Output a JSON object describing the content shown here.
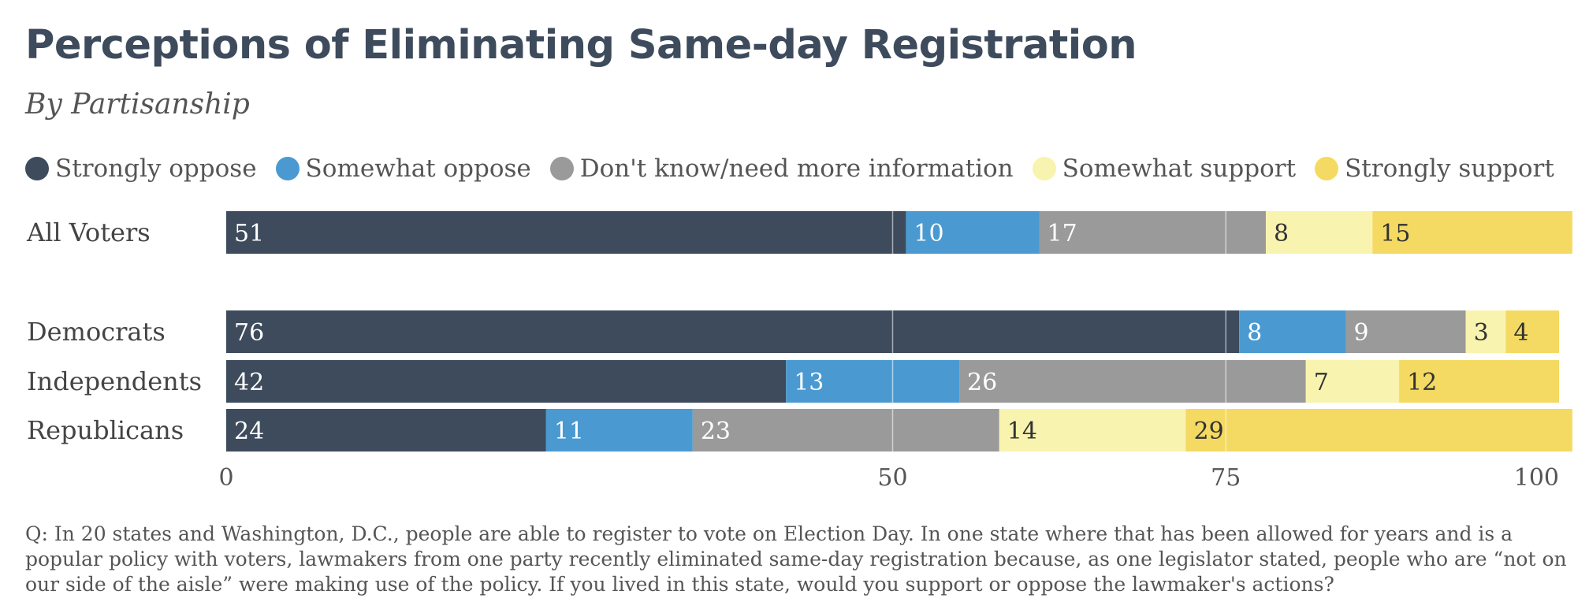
{
  "title": "Perceptions of Eliminating Same-day Registration",
  "subtitle": "By Partisanship",
  "question": "Q: In 20 states and Washington, D.C., people are able to register to vote on Election Day. In one state where that has been allowed for years and is a popular policy with voters, lawmakers from one party recently eliminated same-day registration because, as one legislator stated, people who are “not on our side of the aisle” were making use of the policy. If you lived in this state, would you support or oppose the lawmaker's actions?",
  "chart_data": {
    "type": "bar",
    "orientation": "horizontal",
    "stacked": true,
    "title": "Perceptions of Eliminating Same-day Registration",
    "subtitle": "By Partisanship",
    "categories": [
      "All Voters",
      "Democrats",
      "Independents",
      "Republicans"
    ],
    "series": [
      {
        "name": "Strongly oppose",
        "color": "#3d4b5c",
        "values": [
          51,
          76,
          42,
          24
        ]
      },
      {
        "name": "Somewhat oppose",
        "color": "#4a9ad1",
        "values": [
          10,
          8,
          13,
          11
        ]
      },
      {
        "name": "Don't know/need more information",
        "color": "#9a9a9a",
        "values": [
          17,
          9,
          26,
          23
        ]
      },
      {
        "name": "Somewhat support",
        "color": "#f9f3b0",
        "values": [
          8,
          3,
          7,
          14
        ]
      },
      {
        "name": "Strongly support",
        "color": "#f4da62",
        "values": [
          15,
          4,
          12,
          29
        ]
      }
    ],
    "xlim": [
      0,
      100
    ],
    "x_ticks": [
      "0",
      "50",
      "75",
      "100"
    ],
    "gridlines": [
      50,
      75
    ],
    "legend_position": "top"
  }
}
